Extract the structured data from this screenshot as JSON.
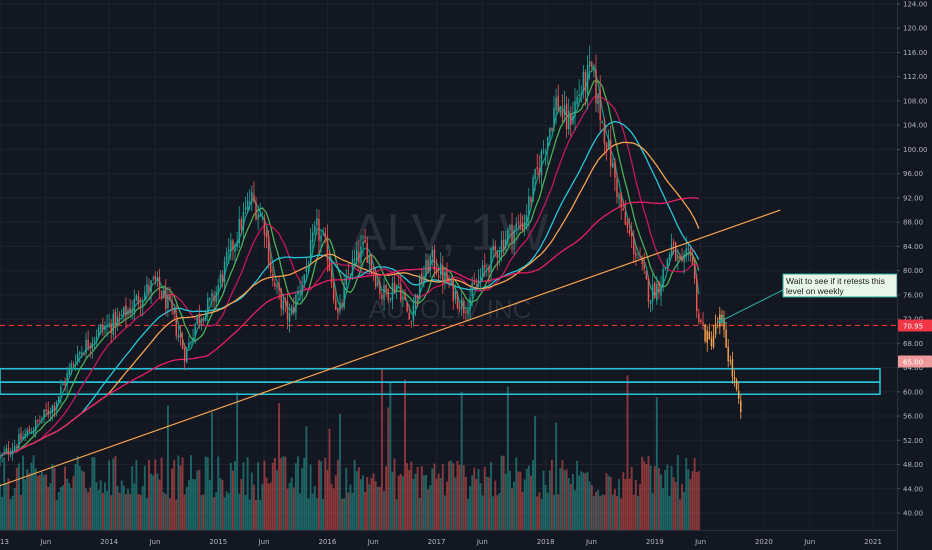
{
  "chart_data": {
    "type": "candlestick",
    "watermark": {
      "symbol": "ALV, 1W",
      "company": "AUTOLIV INC"
    },
    "y_axis": {
      "ticks": [
        "124.00",
        "120.00",
        "116.00",
        "112.00",
        "108.00",
        "104.00",
        "100.00",
        "96.00",
        "92.00",
        "88.00",
        "84.00",
        "80.00",
        "76.00",
        "72.00",
        "68.00",
        "64.00",
        "60.00",
        "56.00",
        "52.00",
        "48.00",
        "44.00",
        "40.00"
      ]
    },
    "x_axis": {
      "ticks": [
        {
          "label": "13",
          "t": 2013.0
        },
        {
          "label": "Jun",
          "t": 2013.42
        },
        {
          "label": "2014",
          "t": 2014.0
        },
        {
          "label": "Jun",
          "t": 2014.42
        },
        {
          "label": "2015",
          "t": 2015.0
        },
        {
          "label": "Jun",
          "t": 2015.42
        },
        {
          "label": "2016",
          "t": 2016.0
        },
        {
          "label": "Jun",
          "t": 2016.42
        },
        {
          "label": "2017",
          "t": 2017.0
        },
        {
          "label": "Jun",
          "t": 2017.42
        },
        {
          "label": "2018",
          "t": 2018.0
        },
        {
          "label": "Jun",
          "t": 2018.42
        },
        {
          "label": "2019",
          "t": 2019.0
        },
        {
          "label": "Jun",
          "t": 2019.42
        },
        {
          "label": "2020",
          "t": 2020.0
        },
        {
          "label": "Jun",
          "t": 2020.42
        },
        {
          "label": "2021",
          "t": 2021.0
        }
      ]
    },
    "price_labels": [
      {
        "text": "70.95",
        "value": 70.95,
        "color": "#f23645"
      },
      {
        "text": "65.00",
        "value": 65.0,
        "color": "#ef9a9a"
      }
    ],
    "horizontal_level": {
      "value": 70.95,
      "color": "#e53935"
    },
    "zones": [
      {
        "from": 61.6,
        "to": 63.8,
        "color": "#26c6da"
      },
      {
        "from": 59.6,
        "to": 61.6,
        "color": "#26c6da"
      }
    ],
    "trendline": {
      "from": {
        "t": 2013.0,
        "v": 44.5
      },
      "to": {
        "t": 2020.15,
        "v": 90.0
      },
      "color": "#f7a24f"
    },
    "annotation": {
      "text_lines": [
        "Wait to see if it retests this",
        "level on weekly"
      ],
      "arrow_to": {
        "t": 2019.55,
        "v": 71.5
      },
      "color": "#26a69a",
      "bg": "#e8f5e9"
    },
    "price_anchors": [
      [
        2013.0,
        49
      ],
      [
        2013.3,
        54
      ],
      [
        2013.5,
        58
      ],
      [
        2013.7,
        66
      ],
      [
        2013.9,
        70
      ],
      [
        2014.1,
        72
      ],
      [
        2014.3,
        76
      ],
      [
        2014.42,
        78
      ],
      [
        2014.55,
        74
      ],
      [
        2014.7,
        66
      ],
      [
        2014.8,
        72
      ],
      [
        2014.95,
        75
      ],
      [
        2015.15,
        85
      ],
      [
        2015.3,
        92
      ],
      [
        2015.42,
        88
      ],
      [
        2015.5,
        78
      ],
      [
        2015.65,
        72
      ],
      [
        2015.8,
        80
      ],
      [
        2015.9,
        87
      ],
      [
        2016.0,
        83
      ],
      [
        2016.1,
        72
      ],
      [
        2016.2,
        80
      ],
      [
        2016.35,
        84
      ],
      [
        2016.5,
        76
      ],
      [
        2016.65,
        78
      ],
      [
        2016.75,
        72
      ],
      [
        2016.85,
        78
      ],
      [
        2016.95,
        82
      ],
      [
        2017.1,
        78
      ],
      [
        2017.25,
        74
      ],
      [
        2017.35,
        77
      ],
      [
        2017.5,
        82
      ],
      [
        2017.65,
        86
      ],
      [
        2017.8,
        88
      ],
      [
        2017.95,
        98
      ],
      [
        2018.1,
        108
      ],
      [
        2018.2,
        104
      ],
      [
        2018.3,
        109
      ],
      [
        2018.42,
        113
      ],
      [
        2018.5,
        106
      ],
      [
        2018.6,
        98
      ],
      [
        2018.72,
        88
      ],
      [
        2018.85,
        82
      ],
      [
        2018.95,
        76
      ],
      [
        2019.05,
        78
      ],
      [
        2019.15,
        84
      ],
      [
        2019.25,
        80
      ],
      [
        2019.33,
        84
      ],
      [
        2019.4,
        72
      ],
      [
        2019.5,
        68
      ],
      [
        2019.6,
        72
      ],
      [
        2019.7,
        64
      ],
      [
        2019.8,
        55
      ]
    ],
    "orange_tail_from": 2019.45,
    "moving_averages": [
      {
        "color": "#089981",
        "period": 4
      },
      {
        "color": "#4caf50",
        "period": 10
      },
      {
        "color": "#c2185b",
        "period": 20
      },
      {
        "color": "#26c6da",
        "period": 40
      },
      {
        "color": "#f7a24f",
        "period": 52
      },
      {
        "color": "#e91e63",
        "period": 100
      }
    ],
    "colors": {
      "up": "#26a69a",
      "down": "#ef5350",
      "tail": "#f7a24f",
      "vol_up": "#26a69a",
      "vol_down": "#ef5350",
      "grid": "#1e222d",
      "bg": "#131722"
    }
  }
}
